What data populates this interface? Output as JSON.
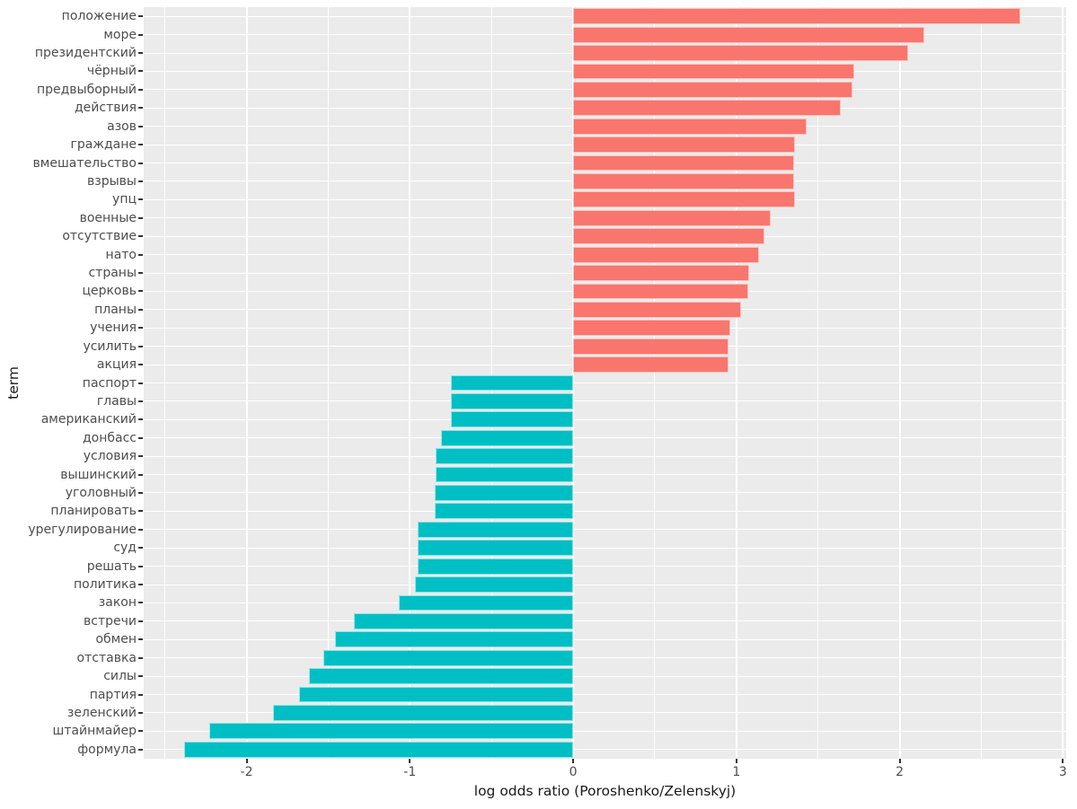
{
  "chart_data": {
    "type": "bar",
    "orientation": "horizontal",
    "title": "",
    "xlabel": "log odds ratio (Poroshenko/Zelenskyj)",
    "ylabel": "term",
    "x_ticks": [
      -2,
      -1,
      0,
      1,
      2,
      3
    ],
    "x_minor_step": 0.5,
    "xlim": [
      -2.63,
      3.02
    ],
    "grid": "ggplot gray panel with white gridlines",
    "legend": "none",
    "colors": {
      "positive_bar": "#F8766D",
      "negative_bar": "#00BFC4",
      "panel_bg": "#EBEBEB",
      "gridline": "#FFFFFF",
      "tick_text": "#4D4D4D",
      "axis_title_text": "#1A1A1A"
    },
    "series": [
      {
        "term": "положение",
        "value": 2.74
      },
      {
        "term": "море",
        "value": 2.15
      },
      {
        "term": "президентский",
        "value": 2.05
      },
      {
        "term": "чёрный",
        "value": 1.72
      },
      {
        "term": "предвыборный",
        "value": 1.71
      },
      {
        "term": "действия",
        "value": 1.64
      },
      {
        "term": "азов",
        "value": 1.43
      },
      {
        "term": "граждане",
        "value": 1.36
      },
      {
        "term": "вмешательство",
        "value": 1.355
      },
      {
        "term": "взрывы",
        "value": 1.355
      },
      {
        "term": "упц",
        "value": 1.36
      },
      {
        "term": "военные",
        "value": 1.21
      },
      {
        "term": "отсутствие",
        "value": 1.17
      },
      {
        "term": "нато",
        "value": 1.14
      },
      {
        "term": "страны",
        "value": 1.08
      },
      {
        "term": "церковь",
        "value": 1.07
      },
      {
        "term": "планы",
        "value": 1.03
      },
      {
        "term": "учения",
        "value": 0.96
      },
      {
        "term": "усилить",
        "value": 0.95
      },
      {
        "term": "акция",
        "value": 0.95
      },
      {
        "term": "паспорт",
        "value": -0.75
      },
      {
        "term": "главы",
        "value": -0.75
      },
      {
        "term": "американский",
        "value": -0.75
      },
      {
        "term": "донбасс",
        "value": -0.81
      },
      {
        "term": "условия",
        "value": -0.84
      },
      {
        "term": "вышинский",
        "value": -0.84
      },
      {
        "term": "уголовный",
        "value": -0.85
      },
      {
        "term": "планировать",
        "value": -0.85
      },
      {
        "term": "урегулирование",
        "value": -0.95
      },
      {
        "term": "суд",
        "value": -0.95
      },
      {
        "term": "решать",
        "value": -0.95
      },
      {
        "term": "политика",
        "value": -0.97
      },
      {
        "term": "закон",
        "value": -1.07
      },
      {
        "term": "встречи",
        "value": -1.34
      },
      {
        "term": "обмен",
        "value": -1.46
      },
      {
        "term": "отставка",
        "value": -1.53
      },
      {
        "term": "силы",
        "value": -1.62
      },
      {
        "term": "партия",
        "value": -1.68
      },
      {
        "term": "зеленский",
        "value": -1.84
      },
      {
        "term": "штайнмайер",
        "value": -2.23
      },
      {
        "term": "формула",
        "value": -2.38
      }
    ]
  }
}
